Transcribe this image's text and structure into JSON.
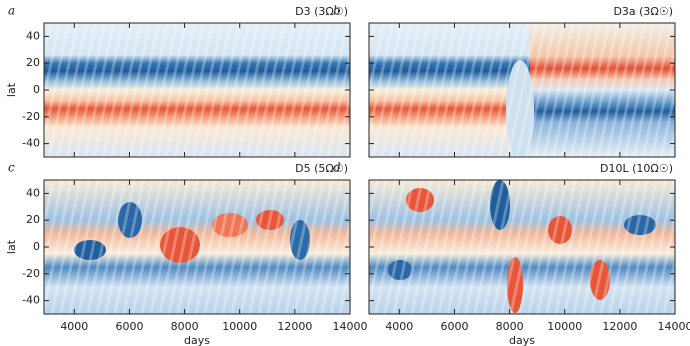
{
  "chart_data": [
    {
      "type": "heatmap",
      "panel": "a",
      "title": "D3 (3Ω☉)",
      "ylabel": "lat",
      "xlim": [
        2900,
        14000
      ],
      "ylim": [
        -50,
        50
      ],
      "xticks": [
        4000,
        6000,
        8000,
        10000,
        12000,
        14000
      ],
      "yticks": [
        -40,
        -20,
        0,
        20,
        40
      ]
    },
    {
      "type": "heatmap",
      "panel": "b",
      "title": "D3a (3Ω☉)",
      "xlim": [
        2900,
        14000
      ],
      "ylim": [
        -50,
        50
      ],
      "xticks": [
        4000,
        6000,
        8000,
        10000,
        12000,
        14000
      ],
      "yticks": [
        -40,
        -20,
        0,
        20,
        40
      ]
    },
    {
      "type": "heatmap",
      "panel": "c",
      "title": "D5 (5Ω☉)",
      "ylabel": "lat",
      "xlabel": "days",
      "xlim": [
        2900,
        14000
      ],
      "ylim": [
        -50,
        50
      ],
      "xticks": [
        4000,
        6000,
        8000,
        10000,
        12000,
        14000
      ],
      "yticks": [
        -40,
        -20,
        0,
        20,
        40
      ]
    },
    {
      "type": "heatmap",
      "panel": "d",
      "title": "D10L (10Ω☉)",
      "xlabel": "days",
      "xlim": [
        2900,
        14000
      ],
      "ylim": [
        -50,
        50
      ],
      "xticks": [
        4000,
        6000,
        8000,
        10000,
        12000,
        14000
      ],
      "yticks": [
        -40,
        -20,
        0,
        20,
        40
      ]
    }
  ]
}
